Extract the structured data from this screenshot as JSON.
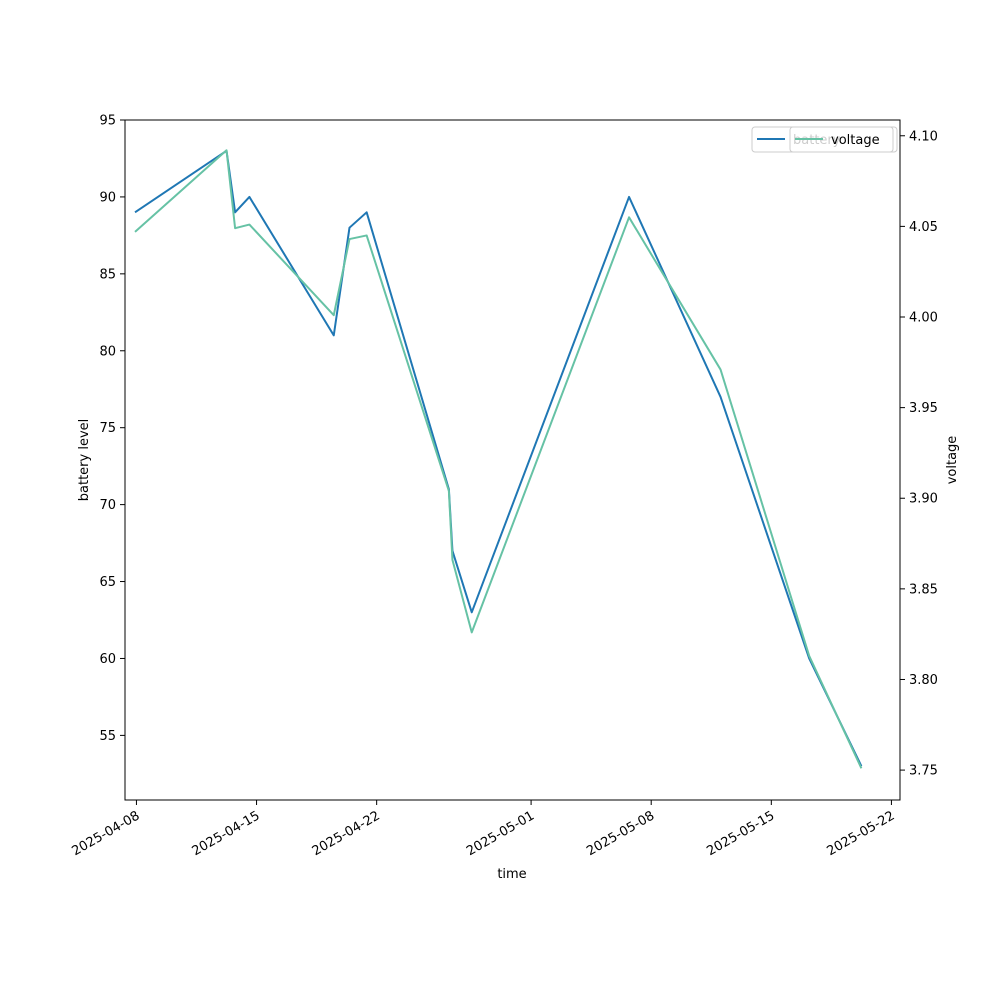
{
  "chart_data": {
    "type": "line",
    "xlabel": "time",
    "ylabel_left": "battery level",
    "ylabel_right": "voltage",
    "x_ticks": [
      "2025-04-08",
      "2025-04-15",
      "2025-04-22",
      "2025-05-01",
      "2025-05-08",
      "2025-05-15",
      "2025-05-22"
    ],
    "y_left_ticks": [
      55,
      60,
      65,
      70,
      75,
      80,
      85,
      90,
      95
    ],
    "y_left_lim": [
      50.8,
      95
    ],
    "y_right_ticks": [
      3.75,
      3.8,
      3.85,
      3.9,
      3.95,
      4.0,
      4.05,
      4.1
    ],
    "y_right_lim": [
      3.7335,
      4.1087
    ],
    "x_lim": [
      "2025-04-07T08:00",
      "2025-05-22T12:00"
    ],
    "legend_placement": "top-right",
    "grid": false,
    "series": [
      {
        "name": "battery",
        "axis": "left",
        "color": "#1f77b4",
        "points": [
          {
            "x": "2025-04-07T22:00",
            "y": 89
          },
          {
            "x": "2025-04-13T06:00",
            "y": 93
          },
          {
            "x": "2025-04-13T18:00",
            "y": 89
          },
          {
            "x": "2025-04-14T14:00",
            "y": 90
          },
          {
            "x": "2025-04-19T12:00",
            "y": 81
          },
          {
            "x": "2025-04-20T10:00",
            "y": 88
          },
          {
            "x": "2025-04-21T10:00",
            "y": 89
          },
          {
            "x": "2025-04-26T05:00",
            "y": 71
          },
          {
            "x": "2025-04-26T10:00",
            "y": 67
          },
          {
            "x": "2025-04-27T13:00",
            "y": 63
          },
          {
            "x": "2025-05-06T17:00",
            "y": 90
          },
          {
            "x": "2025-05-12T01:00",
            "y": 77
          },
          {
            "x": "2025-05-17T05:00",
            "y": 60
          },
          {
            "x": "2025-05-20T06:00",
            "y": 53
          }
        ]
      },
      {
        "name": "voltage",
        "axis": "right",
        "color": "#66c2a5",
        "points": [
          {
            "x": "2025-04-07T22:00",
            "y": 4.047
          },
          {
            "x": "2025-04-13T06:00",
            "y": 4.092
          },
          {
            "x": "2025-04-13T18:00",
            "y": 4.049
          },
          {
            "x": "2025-04-14T14:00",
            "y": 4.051
          },
          {
            "x": "2025-04-19T12:00",
            "y": 4.001
          },
          {
            "x": "2025-04-20T10:00",
            "y": 4.043
          },
          {
            "x": "2025-04-21T10:00",
            "y": 4.045
          },
          {
            "x": "2025-04-26T05:00",
            "y": 3.904
          },
          {
            "x": "2025-04-26T10:00",
            "y": 3.866
          },
          {
            "x": "2025-04-27T13:00",
            "y": 3.826
          },
          {
            "x": "2025-05-06T17:00",
            "y": 4.055
          },
          {
            "x": "2025-05-12T01:00",
            "y": 3.971
          },
          {
            "x": "2025-05-17T05:00",
            "y": 3.813
          },
          {
            "x": "2025-05-20T06:00",
            "y": 3.751
          }
        ]
      }
    ]
  }
}
